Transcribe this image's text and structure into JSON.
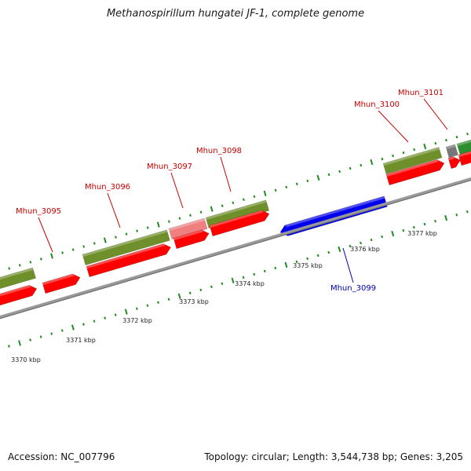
{
  "title": "Methanospirillum hungatei JF-1, complete genome",
  "footer": {
    "accession": "Accession: NC_007796",
    "summary": "Topology: circular; Length: 3,544,738 bp; Genes: 3,205"
  },
  "colors": {
    "backbone": "#8c8c8c",
    "tick": "#1e8c1e",
    "gene_forward": "#ff0000",
    "gene_reverse": "#0000ee",
    "cds_band": "#6f8f2a",
    "cds_band_light": "#f08080",
    "cds_band_dark": "#2f8f2f",
    "gap_block": "#777777",
    "label_forward": "#cc0000",
    "label_reverse": "#0000aa"
  },
  "scale_labels": [
    "3370 kbp",
    "3371 kbp",
    "3372 kbp",
    "3373 kbp",
    "3374 kbp",
    "3375 kbp",
    "3376 kbp",
    "3377 kbp"
  ],
  "gene_labels": [
    {
      "name": "Mhun_3095",
      "strand": "forward"
    },
    {
      "name": "Mhun_3096",
      "strand": "forward"
    },
    {
      "name": "Mhun_3097",
      "strand": "forward"
    },
    {
      "name": "Mhun_3098",
      "strand": "forward"
    },
    {
      "name": "Mhun_3099",
      "strand": "reverse"
    },
    {
      "name": "Mhun_3100",
      "strand": "forward"
    },
    {
      "name": "Mhun_3101",
      "strand": "forward"
    }
  ]
}
